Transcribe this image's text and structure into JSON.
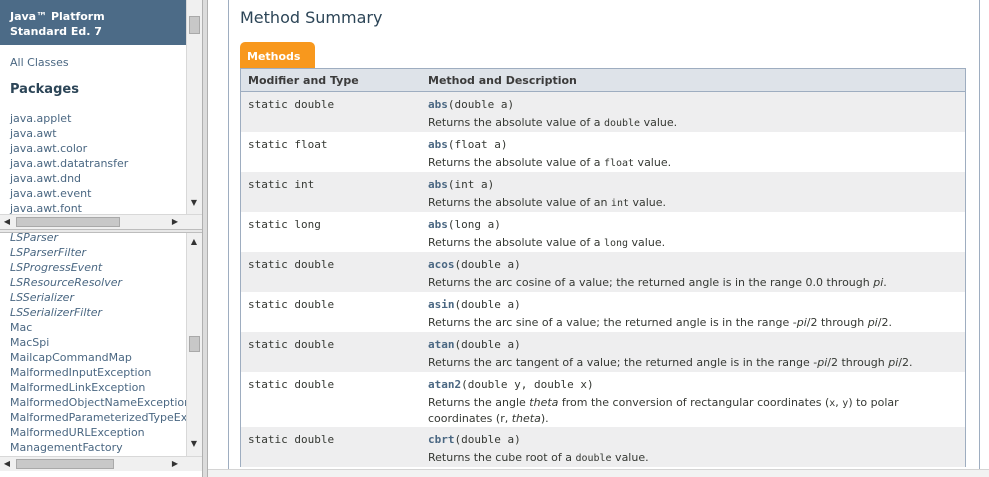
{
  "header": {
    "line1": "Java™ Platform",
    "line2": "Standard Ed. 7"
  },
  "package_frame": {
    "all_classes": "All Classes",
    "packages_heading": "Packages",
    "packages": [
      "java.applet",
      "java.awt",
      "java.awt.color",
      "java.awt.datatransfer",
      "java.awt.dnd",
      "java.awt.event",
      "java.awt.font"
    ]
  },
  "class_frame": {
    "items": [
      {
        "label": "LSParser",
        "italic": true
      },
      {
        "label": "LSParserFilter",
        "italic": true
      },
      {
        "label": "LSProgressEvent",
        "italic": true
      },
      {
        "label": "LSResourceResolver",
        "italic": true
      },
      {
        "label": "LSSerializer",
        "italic": true
      },
      {
        "label": "LSSerializerFilter",
        "italic": true
      },
      {
        "label": "Mac",
        "italic": false
      },
      {
        "label": "MacSpi",
        "italic": false
      },
      {
        "label": "MailcapCommandMap",
        "italic": false
      },
      {
        "label": "MalformedInputException",
        "italic": false
      },
      {
        "label": "MalformedLinkException",
        "italic": false
      },
      {
        "label": "MalformedObjectNameException",
        "italic": false
      },
      {
        "label": "MalformedParameterizedTypeException",
        "italic": false
      },
      {
        "label": "MalformedURLException",
        "italic": false
      },
      {
        "label": "ManagementFactory",
        "italic": false
      }
    ]
  },
  "main": {
    "title": "Method Summary",
    "tab_label": "Methods",
    "col_modifier": "Modifier and Type",
    "col_method": "Method and Description",
    "rows": [
      {
        "mod": "static double",
        "name": "abs",
        "params": "(double a)",
        "desc": "Returns the absolute value of a <code>double</code> value."
      },
      {
        "mod": "static float",
        "name": "abs",
        "params": "(float a)",
        "desc": "Returns the absolute value of a <code>float</code> value."
      },
      {
        "mod": "static int",
        "name": "abs",
        "params": "(int a)",
        "desc": "Returns the absolute value of an <code>int</code> value."
      },
      {
        "mod": "static long",
        "name": "abs",
        "params": "(long a)",
        "desc": "Returns the absolute value of a <code>long</code> value."
      },
      {
        "mod": "static double",
        "name": "acos",
        "params": "(double a)",
        "desc": "Returns the arc cosine of a value; the returned angle is in the range 0.0 through <span class=\"em\">pi</span>."
      },
      {
        "mod": "static double",
        "name": "asin",
        "params": "(double a)",
        "desc": "Returns the arc sine of a value; the returned angle is in the range -<span class=\"em\">pi</span>/2 through <span class=\"em\">pi</span>/2."
      },
      {
        "mod": "static double",
        "name": "atan",
        "params": "(double a)",
        "desc": "Returns the arc tangent of a value; the returned angle is in the range -<span class=\"em\">pi</span>/2 through <span class=\"em\">pi</span>/2."
      },
      {
        "mod": "static double",
        "name": "atan2",
        "params": "(double y, double x)",
        "desc": "Returns the angle <span class=\"em\">theta</span> from the conversion of rectangular coordinates (<code>x</code>, <code>y</code>) to polar coordinates (r, <span class=\"em\">theta</span>)."
      },
      {
        "mod": "static double",
        "name": "cbrt",
        "params": "(double a)",
        "desc": "Returns the cube root of a <code>double</code> value."
      }
    ]
  },
  "colors": {
    "header_bg": "#4c6b87",
    "tab_orange": "#f8981d",
    "table_header": "#dee3e9",
    "link": "#4a6782"
  }
}
